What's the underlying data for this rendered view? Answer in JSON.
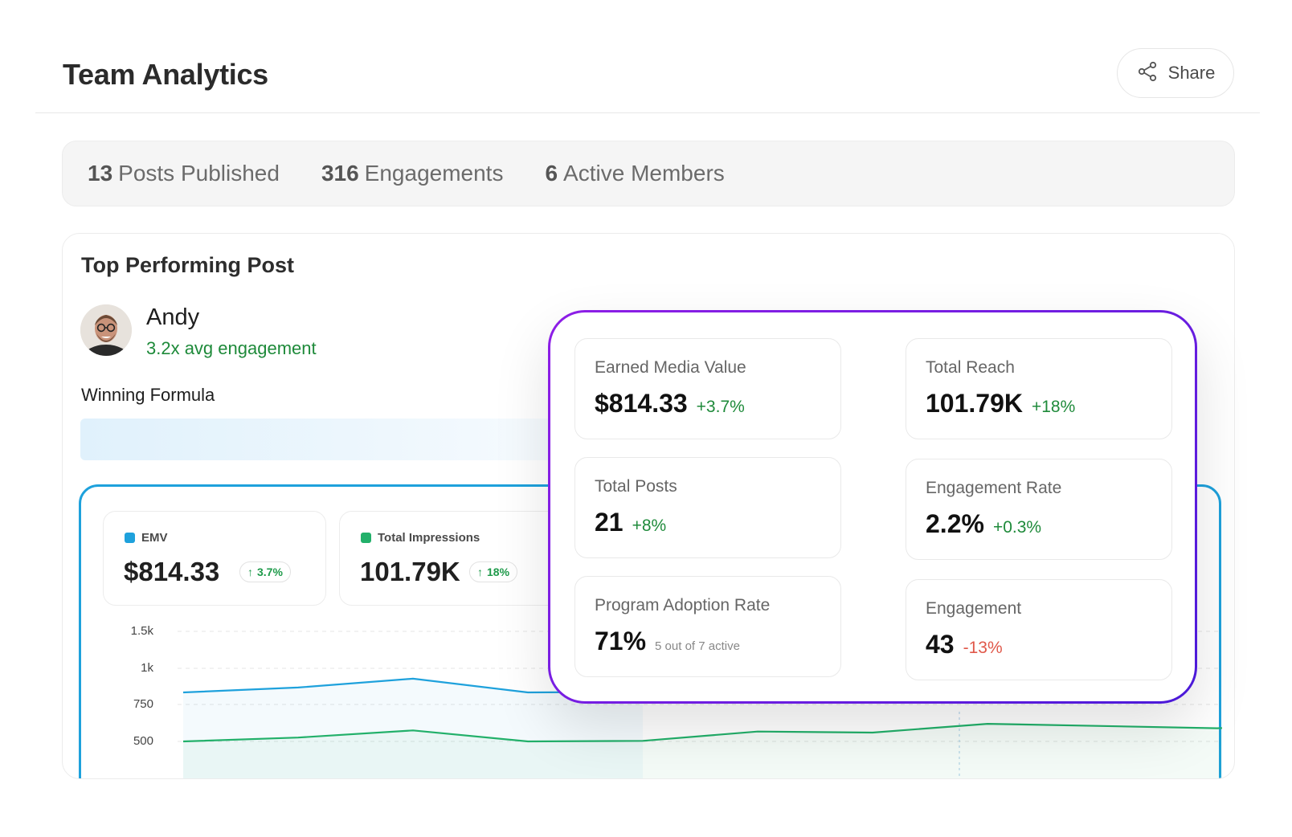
{
  "header": {
    "title": "Team Analytics",
    "share_label": "Share",
    "share_icon": "share-icon"
  },
  "stats": [
    {
      "value": "13",
      "label": "Posts Published"
    },
    {
      "value": "316",
      "label": "Engagements"
    },
    {
      "value": "6",
      "label": "Active Members"
    }
  ],
  "top_post": {
    "title": "Top Performing Post",
    "author": "Andy",
    "engagement": "3.2x avg engagement",
    "formula_label": "Winning Formula"
  },
  "metrics": [
    {
      "label": "EMV",
      "value": "$814.33",
      "change": "3.7%",
      "color": "#1ea1dc"
    },
    {
      "label": "Total Impressions",
      "value": "101.79K",
      "change": "18%",
      "color": "#22b06a"
    }
  ],
  "chart_data": {
    "type": "line",
    "y_ticks": [
      "1.5k",
      "1k",
      "750",
      "500"
    ],
    "ylim": [
      500,
      1500
    ],
    "series": [
      {
        "name": "EMV",
        "color": "#1ea1dc",
        "values": [
          945,
          990,
          1070,
          945,
          950
        ]
      },
      {
        "name": "Total Impressions",
        "color": "#22b06a",
        "values": [
          500,
          535,
          600,
          500,
          505,
          590,
          580,
          660,
          640,
          620,
          670
        ]
      }
    ]
  },
  "overlay": {
    "cards": [
      {
        "label": "Earned Media Value",
        "value": "$814.33",
        "change": "+3.7%",
        "negative": false
      },
      {
        "label": "Total Reach",
        "value": "101.79K",
        "change": "+18%",
        "negative": false
      },
      {
        "label": "Total Posts",
        "value": "21",
        "change": "+8%",
        "negative": false
      },
      {
        "label": "Engagement Rate",
        "value": "2.2%",
        "change": "+0.3%",
        "negative": false
      },
      {
        "label": "Program Adoption Rate",
        "value": "71%",
        "note": "5 out of 7 active"
      },
      {
        "label": "Engagement",
        "value": "43",
        "change": "-13%",
        "negative": true
      }
    ]
  }
}
